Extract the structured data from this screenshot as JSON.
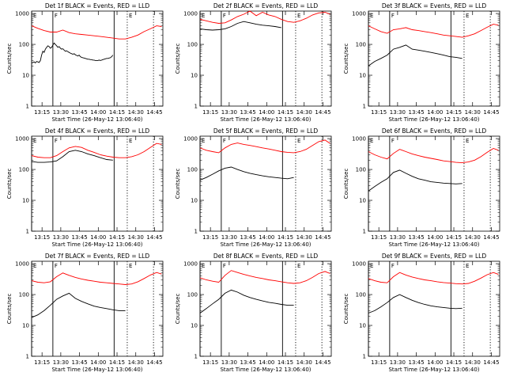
{
  "chart_data": {
    "type": "line",
    "yscale": "log",
    "ylim": [
      1,
      1200
    ],
    "ylabel": "Counts/sec",
    "xlabel": "Start Time (26-May-12 13:06:40)",
    "xlim_minutes": [
      0,
      105
    ],
    "xticks": [
      {
        "m": 8.33,
        "label": "13:15"
      },
      {
        "m": 23.33,
        "label": "13:30"
      },
      {
        "m": 38.33,
        "label": "13:45"
      },
      {
        "m": 53.33,
        "label": "14:00"
      },
      {
        "m": 68.33,
        "label": "14:15"
      },
      {
        "m": 83.33,
        "label": "14:30"
      },
      {
        "m": 98.33,
        "label": "14:45"
      }
    ],
    "yticks": [
      {
        "v": 1,
        "label": "1"
      },
      {
        "v": 10,
        "label": "10"
      },
      {
        "v": 100,
        "label": "100"
      },
      {
        "v": 1000,
        "label": "1000"
      }
    ],
    "series_colors": {
      "events": "#000000",
      "lld": "#ff0000"
    },
    "markers": [
      {
        "m": 0,
        "label": "E",
        "style": "solid"
      },
      {
        "m": 17,
        "label": "F",
        "style": "solid"
      },
      {
        "m": 66,
        "label": "",
        "style": "solid"
      },
      {
        "m": 76.5,
        "label": "E",
        "style": "dotted"
      },
      {
        "m": 97.5,
        "label": "",
        "style": "dotted"
      }
    ],
    "panels": [
      {
        "title": "Det 1f BLACK = Events, RED = LLD",
        "events": {
          "x": [
            0,
            1,
            2,
            3,
            4,
            5,
            6,
            7,
            8,
            9,
            10,
            11,
            12,
            13,
            14,
            15,
            16,
            17,
            18,
            19,
            20,
            21,
            22,
            23,
            24,
            25,
            26,
            27,
            28,
            29,
            30,
            31,
            32,
            33,
            34,
            35,
            36,
            37,
            38,
            39,
            40,
            41,
            42,
            43,
            44,
            45,
            46,
            47,
            48,
            49,
            50,
            51,
            52,
            53,
            54,
            55,
            56,
            57,
            58,
            59,
            60,
            61,
            62,
            63,
            64,
            65
          ],
          "y": [
            25,
            26,
            27,
            25,
            28,
            27,
            26,
            30,
            45,
            60,
            55,
            70,
            80,
            90,
            85,
            75,
            80,
            95,
            110,
            100,
            90,
            80,
            85,
            75,
            70,
            72,
            65,
            60,
            62,
            58,
            55,
            52,
            50,
            48,
            50,
            46,
            44,
            42,
            45,
            40,
            38,
            37,
            36,
            35,
            34,
            33,
            33,
            32,
            32,
            31,
            31,
            30,
            30,
            30,
            31,
            30,
            31,
            32,
            33,
            34,
            35,
            35,
            36,
            37,
            40,
            45
          ]
        },
        "lld": {
          "x": [
            0,
            5,
            10,
            15,
            20,
            25,
            30,
            35,
            40,
            45,
            50,
            55,
            60,
            65,
            70,
            75,
            80,
            85,
            90,
            95,
            100,
            104
          ],
          "y": [
            400,
            330,
            280,
            250,
            250,
            290,
            240,
            220,
            210,
            200,
            190,
            180,
            170,
            160,
            150,
            150,
            170,
            200,
            260,
            320,
            400,
            380
          ]
        }
      },
      {
        "title": "Det 2f BLACK = Events, RED = LLD",
        "events": {
          "x": [
            0,
            5,
            10,
            15,
            20,
            25,
            30,
            35,
            40,
            45,
            50,
            55,
            60,
            65
          ],
          "y": [
            320,
            300,
            290,
            300,
            320,
            380,
            480,
            550,
            500,
            450,
            420,
            400,
            380,
            350
          ]
        },
        "lld": {
          "x": [
            0,
            5,
            10,
            15,
            20,
            25,
            30,
            35,
            40,
            45,
            50,
            55,
            60,
            65,
            70,
            75,
            80,
            85,
            90,
            95,
            100,
            104
          ],
          "y": [
            650,
            580,
            520,
            480,
            500,
            620,
            800,
            950,
            1200,
            850,
            1100,
            900,
            800,
            650,
            550,
            520,
            580,
            700,
            900,
            1050,
            1100,
            950
          ]
        }
      },
      {
        "title": "Det 3f BLACK = Events, RED = LLD",
        "events": {
          "x": [
            0,
            5,
            10,
            15,
            20,
            25,
            30,
            35,
            40,
            45,
            50,
            55,
            60,
            65,
            70,
            75
          ],
          "y": [
            20,
            28,
            35,
            45,
            70,
            80,
            95,
            70,
            65,
            60,
            55,
            50,
            45,
            40,
            38,
            35
          ]
        },
        "lld": {
          "x": [
            0,
            5,
            10,
            15,
            20,
            25,
            30,
            35,
            40,
            45,
            50,
            55,
            60,
            65,
            70,
            75,
            80,
            85,
            90,
            95,
            100,
            104
          ],
          "y": [
            400,
            320,
            260,
            230,
            300,
            320,
            350,
            300,
            280,
            260,
            240,
            220,
            200,
            190,
            180,
            170,
            190,
            220,
            280,
            360,
            450,
            420
          ]
        }
      },
      {
        "title": "Det 4f BLACK = Events, RED = LLD",
        "events": {
          "x": [
            0,
            5,
            10,
            15,
            20,
            25,
            30,
            35,
            40,
            45,
            50,
            55,
            60,
            65
          ],
          "y": [
            180,
            170,
            170,
            175,
            190,
            260,
            380,
            420,
            380,
            320,
            280,
            240,
            210,
            200
          ]
        },
        "lld": {
          "x": [
            0,
            5,
            10,
            15,
            20,
            25,
            30,
            35,
            40,
            45,
            50,
            55,
            60,
            65,
            70,
            75,
            80,
            85,
            90,
            95,
            100,
            104
          ],
          "y": [
            280,
            250,
            240,
            240,
            280,
            380,
            500,
            560,
            520,
            420,
            360,
            300,
            270,
            250,
            240,
            240,
            260,
            300,
            380,
            520,
            700,
            650
          ]
        }
      },
      {
        "title": "Det 5f BLACK = Events, RED = LLD",
        "events": {
          "x": [
            0,
            5,
            10,
            15,
            20,
            25,
            30,
            35,
            40,
            45,
            50,
            55,
            60,
            65,
            70,
            75
          ],
          "y": [
            45,
            55,
            70,
            90,
            110,
            120,
            100,
            85,
            75,
            68,
            62,
            58,
            55,
            52,
            50,
            55
          ]
        },
        "lld": {
          "x": [
            0,
            5,
            10,
            15,
            20,
            25,
            30,
            35,
            40,
            45,
            50,
            55,
            60,
            65,
            70,
            75,
            80,
            85,
            90,
            95,
            100,
            104
          ],
          "y": [
            500,
            420,
            380,
            350,
            500,
            650,
            720,
            650,
            600,
            550,
            500,
            460,
            420,
            380,
            360,
            350,
            380,
            450,
            600,
            800,
            900,
            700
          ]
        }
      },
      {
        "title": "Det 6f BLACK = Events, RED = LLD",
        "events": {
          "x": [
            0,
            5,
            10,
            15,
            20,
            25,
            30,
            35,
            40,
            45,
            50,
            55,
            60,
            65,
            70,
            75
          ],
          "y": [
            20,
            28,
            38,
            50,
            80,
            95,
            75,
            60,
            50,
            45,
            40,
            38,
            36,
            35,
            34,
            35
          ]
        },
        "lld": {
          "x": [
            0,
            5,
            10,
            15,
            20,
            25,
            30,
            35,
            40,
            45,
            50,
            55,
            60,
            65,
            70,
            75,
            80,
            85,
            90,
            95,
            100,
            104
          ],
          "y": [
            380,
            300,
            250,
            220,
            330,
            450,
            380,
            320,
            280,
            250,
            230,
            210,
            190,
            180,
            170,
            165,
            175,
            200,
            260,
            360,
            480,
            420
          ]
        }
      },
      {
        "title": "Det 7f BLACK = Events, RED = LLD",
        "events": {
          "x": [
            0,
            5,
            10,
            15,
            20,
            25,
            30,
            35,
            40,
            45,
            50,
            55,
            60,
            65,
            70,
            75
          ],
          "y": [
            18,
            22,
            30,
            45,
            70,
            90,
            110,
            75,
            60,
            50,
            42,
            38,
            35,
            32,
            30,
            30
          ]
        },
        "lld": {
          "x": [
            0,
            5,
            10,
            15,
            20,
            25,
            30,
            35,
            40,
            45,
            50,
            55,
            60,
            65,
            70,
            75,
            80,
            85,
            90,
            95,
            100,
            104
          ],
          "y": [
            280,
            250,
            240,
            260,
            380,
            500,
            420,
            360,
            320,
            290,
            270,
            250,
            240,
            230,
            220,
            210,
            220,
            260,
            330,
            430,
            520,
            460
          ]
        }
      },
      {
        "title": "Det 8f BLACK = Events, RED = LLD",
        "events": {
          "x": [
            0,
            5,
            10,
            15,
            20,
            25,
            30,
            35,
            40,
            45,
            50,
            55,
            60,
            65,
            70,
            75
          ],
          "y": [
            25,
            35,
            50,
            70,
            110,
            140,
            120,
            95,
            80,
            70,
            62,
            56,
            52,
            48,
            45,
            45
          ]
        },
        "lld": {
          "x": [
            0,
            5,
            10,
            15,
            20,
            25,
            30,
            35,
            40,
            45,
            50,
            55,
            60,
            65,
            70,
            75,
            80,
            85,
            90,
            95,
            100,
            104
          ],
          "y": [
            350,
            300,
            270,
            250,
            420,
            600,
            520,
            450,
            400,
            360,
            330,
            300,
            280,
            260,
            240,
            230,
            240,
            280,
            360,
            480,
            560,
            480
          ]
        }
      },
      {
        "title": "Det 9f BLACK = Events, RED = LLD",
        "events": {
          "x": [
            0,
            5,
            10,
            15,
            20,
            25,
            30,
            35,
            40,
            45,
            50,
            55,
            60,
            65,
            70,
            75
          ],
          "y": [
            25,
            30,
            40,
            55,
            80,
            100,
            80,
            65,
            55,
            48,
            43,
            40,
            38,
            36,
            35,
            36
          ]
        },
        "lld": {
          "x": [
            0,
            5,
            10,
            15,
            20,
            25,
            30,
            35,
            40,
            45,
            50,
            55,
            60,
            65,
            70,
            75,
            80,
            85,
            90,
            95,
            100,
            104
          ],
          "y": [
            330,
            280,
            250,
            240,
            380,
            520,
            430,
            370,
            330,
            300,
            280,
            260,
            245,
            235,
            225,
            220,
            230,
            270,
            340,
            440,
            520,
            450
          ]
        }
      }
    ]
  }
}
